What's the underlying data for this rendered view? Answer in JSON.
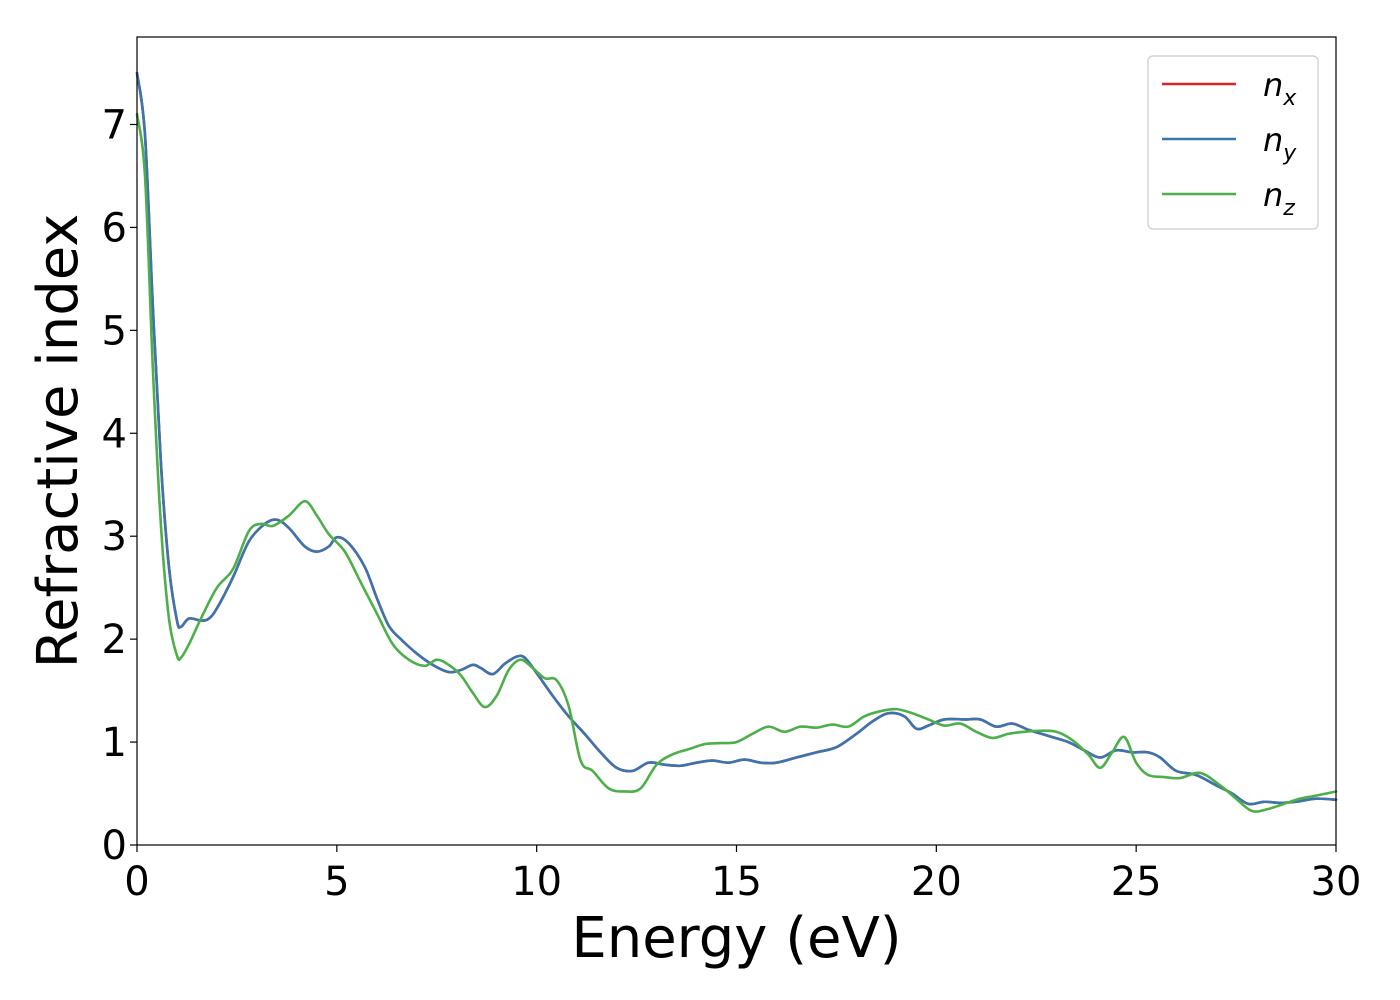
{
  "chart_data": {
    "type": "line",
    "title": "",
    "xlabel": "Energy (eV)",
    "ylabel": "Refractive index",
    "xlim": [
      0,
      30
    ],
    "ylim": [
      0,
      7.85
    ],
    "xticks": [
      "0",
      "5",
      "10",
      "15",
      "20",
      "25",
      "30"
    ],
    "yticks": [
      "0",
      "1",
      "2",
      "3",
      "4",
      "5",
      "6",
      "7"
    ],
    "legend_position": "top-right",
    "grid": false,
    "series": [
      {
        "name": "n_x",
        "label_main": "n",
        "label_sub": "x",
        "color": "#d62728",
        "x": [
          0,
          0.2,
          0.4,
          0.6,
          0.8,
          1.0,
          1.1,
          1.3,
          1.6,
          1.8,
          2.0,
          2.4,
          2.8,
          3.2,
          3.5,
          3.8,
          4.2,
          4.5,
          4.8,
          5.0,
          5.3,
          5.7,
          6.0,
          6.3,
          6.6,
          7.0,
          7.4,
          7.8,
          8.1,
          8.4,
          8.6,
          8.9,
          9.2,
          9.5,
          9.7,
          10.0,
          10.4,
          10.8,
          11.2,
          11.6,
          12.0,
          12.4,
          12.8,
          13.2,
          13.6,
          14.0,
          14.4,
          14.8,
          15.2,
          15.6,
          16.0,
          16.5,
          17.0,
          17.5,
          18.0,
          18.4,
          18.8,
          19.2,
          19.5,
          19.8,
          20.2,
          20.7,
          21.1,
          21.5,
          21.9,
          22.3,
          22.8,
          23.3,
          23.7,
          24.1,
          24.5,
          24.9,
          25.3,
          25.6,
          26.0,
          26.5,
          27.0,
          27.4,
          27.8,
          28.2,
          28.6,
          29.0,
          29.5,
          30.0
        ],
        "y": [
          7.5,
          6.9,
          5.2,
          3.7,
          2.7,
          2.18,
          2.12,
          2.2,
          2.18,
          2.2,
          2.3,
          2.6,
          2.95,
          3.12,
          3.16,
          3.08,
          2.9,
          2.85,
          2.9,
          2.99,
          2.93,
          2.7,
          2.4,
          2.13,
          2.0,
          1.86,
          1.75,
          1.68,
          1.7,
          1.75,
          1.72,
          1.66,
          1.76,
          1.83,
          1.82,
          1.67,
          1.45,
          1.25,
          1.08,
          0.9,
          0.75,
          0.72,
          0.8,
          0.78,
          0.77,
          0.8,
          0.82,
          0.8,
          0.83,
          0.8,
          0.8,
          0.85,
          0.9,
          0.95,
          1.08,
          1.2,
          1.28,
          1.25,
          1.13,
          1.16,
          1.22,
          1.22,
          1.22,
          1.15,
          1.18,
          1.12,
          1.06,
          1.0,
          0.92,
          0.85,
          0.92,
          0.9,
          0.9,
          0.85,
          0.72,
          0.68,
          0.58,
          0.5,
          0.4,
          0.42,
          0.41,
          0.42,
          0.45,
          0.44
        ]
      },
      {
        "name": "n_y",
        "label_main": "n",
        "label_sub": "y",
        "color": "#3b75af",
        "x": [
          0,
          0.2,
          0.4,
          0.6,
          0.8,
          1.0,
          1.1,
          1.3,
          1.6,
          1.8,
          2.0,
          2.4,
          2.8,
          3.2,
          3.5,
          3.8,
          4.2,
          4.5,
          4.8,
          5.0,
          5.3,
          5.7,
          6.0,
          6.3,
          6.6,
          7.0,
          7.4,
          7.8,
          8.1,
          8.4,
          8.6,
          8.9,
          9.2,
          9.5,
          9.7,
          10.0,
          10.4,
          10.8,
          11.2,
          11.6,
          12.0,
          12.4,
          12.8,
          13.2,
          13.6,
          14.0,
          14.4,
          14.8,
          15.2,
          15.6,
          16.0,
          16.5,
          17.0,
          17.5,
          18.0,
          18.4,
          18.8,
          19.2,
          19.5,
          19.8,
          20.2,
          20.7,
          21.1,
          21.5,
          21.9,
          22.3,
          22.8,
          23.3,
          23.7,
          24.1,
          24.5,
          24.9,
          25.3,
          25.6,
          26.0,
          26.5,
          27.0,
          27.4,
          27.8,
          28.2,
          28.6,
          29.0,
          29.5,
          30.0
        ],
        "y": [
          7.5,
          6.9,
          5.2,
          3.7,
          2.7,
          2.18,
          2.12,
          2.2,
          2.18,
          2.2,
          2.3,
          2.6,
          2.95,
          3.12,
          3.16,
          3.08,
          2.9,
          2.85,
          2.9,
          2.99,
          2.93,
          2.7,
          2.4,
          2.13,
          2.0,
          1.86,
          1.75,
          1.68,
          1.7,
          1.75,
          1.72,
          1.66,
          1.76,
          1.83,
          1.82,
          1.67,
          1.45,
          1.25,
          1.08,
          0.9,
          0.75,
          0.72,
          0.8,
          0.78,
          0.77,
          0.8,
          0.82,
          0.8,
          0.83,
          0.8,
          0.8,
          0.85,
          0.9,
          0.95,
          1.08,
          1.2,
          1.28,
          1.25,
          1.13,
          1.16,
          1.22,
          1.22,
          1.22,
          1.15,
          1.18,
          1.12,
          1.06,
          1.0,
          0.92,
          0.85,
          0.92,
          0.9,
          0.9,
          0.85,
          0.72,
          0.68,
          0.58,
          0.5,
          0.4,
          0.42,
          0.41,
          0.42,
          0.45,
          0.44
        ]
      },
      {
        "name": "n_z",
        "label_main": "n",
        "label_sub": "z",
        "color": "#4daf4a",
        "x": [
          0,
          0.2,
          0.4,
          0.6,
          0.8,
          1.0,
          1.1,
          1.3,
          1.6,
          2.0,
          2.4,
          2.8,
          3.1,
          3.4,
          3.8,
          4.2,
          4.5,
          4.8,
          5.2,
          5.6,
          6.0,
          6.4,
          6.8,
          7.2,
          7.5,
          7.8,
          8.1,
          8.4,
          8.7,
          9.0,
          9.3,
          9.6,
          9.9,
          10.2,
          10.5,
          10.8,
          11.1,
          11.4,
          11.8,
          12.2,
          12.6,
          13.0,
          13.4,
          13.8,
          14.2,
          14.6,
          15.0,
          15.4,
          15.8,
          16.2,
          16.6,
          17.0,
          17.4,
          17.8,
          18.2,
          18.6,
          19.0,
          19.4,
          19.8,
          20.2,
          20.6,
          21.0,
          21.4,
          21.8,
          22.2,
          22.6,
          23.0,
          23.4,
          23.8,
          24.1,
          24.4,
          24.7,
          25.0,
          25.3,
          25.7,
          26.1,
          26.6,
          27.1,
          27.5,
          27.9,
          28.3,
          28.7,
          29.1,
          29.5,
          30.0
        ],
        "y": [
          7.1,
          6.5,
          4.6,
          3.1,
          2.2,
          1.84,
          1.82,
          1.95,
          2.2,
          2.5,
          2.68,
          3.05,
          3.12,
          3.1,
          3.2,
          3.34,
          3.2,
          3.02,
          2.85,
          2.55,
          2.25,
          1.95,
          1.8,
          1.74,
          1.8,
          1.75,
          1.65,
          1.48,
          1.34,
          1.45,
          1.7,
          1.8,
          1.72,
          1.62,
          1.6,
          1.35,
          0.82,
          0.72,
          0.55,
          0.52,
          0.55,
          0.78,
          0.88,
          0.93,
          0.98,
          0.99,
          1.0,
          1.08,
          1.15,
          1.1,
          1.15,
          1.14,
          1.17,
          1.15,
          1.25,
          1.3,
          1.32,
          1.28,
          1.22,
          1.16,
          1.18,
          1.1,
          1.04,
          1.08,
          1.1,
          1.11,
          1.1,
          1.02,
          0.88,
          0.75,
          0.9,
          1.05,
          0.8,
          0.68,
          0.66,
          0.65,
          0.7,
          0.58,
          0.45,
          0.33,
          0.35,
          0.4,
          0.45,
          0.48,
          0.52
        ]
      }
    ]
  }
}
